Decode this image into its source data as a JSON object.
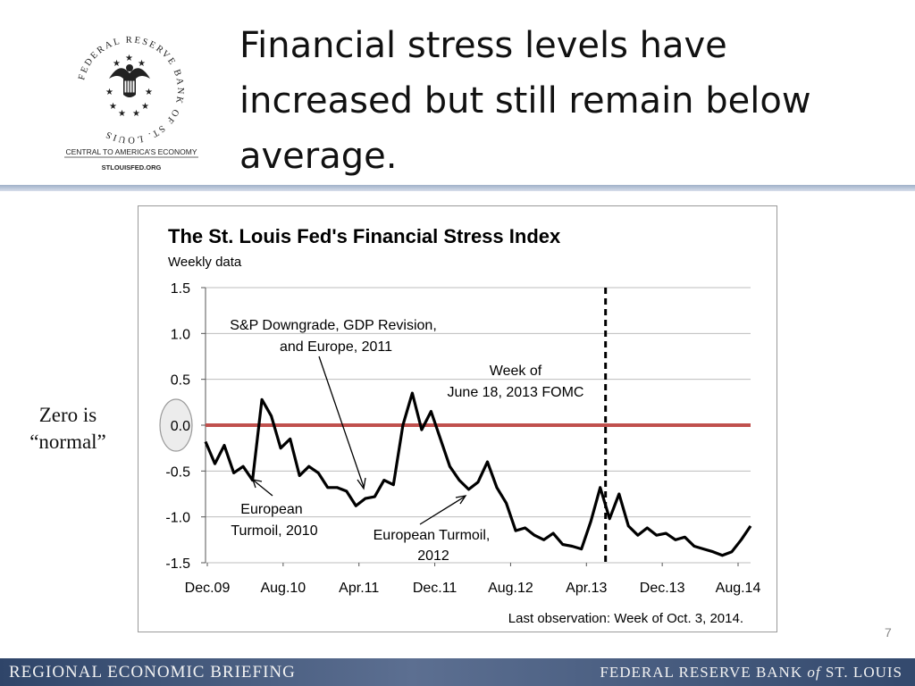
{
  "header": {
    "title_lines": [
      "Financial stress levels have",
      "increased but still remain below",
      "average."
    ]
  },
  "logo": {
    "ring_text": "FEDERAL RESERVE BANK OF ST. LOUIS",
    "tagline": "CENTRAL TO AMERICA’S ECONOMY",
    "url": "STLOUISFED.ORG"
  },
  "side_note": [
    "Zero is",
    "“normal”"
  ],
  "slide_number": "7",
  "footer": {
    "left": "REGIONAL ECONOMIC BRIEFING",
    "right_part1": "FEDERAL RESERVE BANK ",
    "right_of": "of",
    "right_part2": " ST. LOUIS"
  },
  "colors": {
    "zero_line": "#c0504d",
    "series": "#000000",
    "footer_bg": "#3d5278"
  },
  "chart_data": {
    "type": "line",
    "title": "The St. Louis Fed's Financial Stress Index",
    "subtitle": "Weekly data",
    "yticks": [
      "1.5",
      "1.0",
      "0.5",
      "0.0",
      "-0.5",
      "-1.0",
      "-1.5"
    ],
    "xticks": [
      "Dec.09",
      "Aug.10",
      "Apr.11",
      "Dec.11",
      "Aug.12",
      "Apr.13",
      "Dec.13",
      "Aug.14"
    ],
    "ylim": [
      -1.5,
      1.5
    ],
    "x_range": [
      "2009-12",
      "2014-10"
    ],
    "grid": true,
    "reference_line": {
      "y": 0.0
    },
    "event_line": {
      "x": "2013-06-18",
      "label_lines": [
        "Week of",
        "June 18, 2013 FOMC"
      ]
    },
    "annotations": [
      {
        "lines": [
          "S&P Downgrade, GDP Revision,",
          "and Europe, 2011"
        ],
        "points_to": "2011-03"
      },
      {
        "lines": [
          "European",
          "Turmoil, 2010"
        ],
        "points_to": "2010-06"
      },
      {
        "lines": [
          "European Turmoil,",
          "2012"
        ],
        "points_to": "2012-06"
      }
    ],
    "note": "Last observation: Week of Oct. 3, 2014.",
    "series": [
      {
        "points": [
          [
            "2009-12",
            -0.18
          ],
          [
            "2010-01",
            -0.42
          ],
          [
            "2010-02",
            -0.22
          ],
          [
            "2010-03",
            -0.52
          ],
          [
            "2010-04",
            -0.45
          ],
          [
            "2010-05",
            -0.6
          ],
          [
            "2010-06",
            0.28
          ],
          [
            "2010-07",
            0.1
          ],
          [
            "2010-08",
            -0.25
          ],
          [
            "2010-09",
            -0.15
          ],
          [
            "2010-10",
            -0.55
          ],
          [
            "2010-11",
            -0.45
          ],
          [
            "2010-12",
            -0.52
          ],
          [
            "2011-01",
            -0.68
          ],
          [
            "2011-02",
            -0.68
          ],
          [
            "2011-03",
            -0.72
          ],
          [
            "2011-04",
            -0.88
          ],
          [
            "2011-05",
            -0.8
          ],
          [
            "2011-06",
            -0.78
          ],
          [
            "2011-07",
            -0.6
          ],
          [
            "2011-08",
            -0.65
          ],
          [
            "2011-09",
            0.0
          ],
          [
            "2011-10",
            0.35
          ],
          [
            "2011-11",
            -0.05
          ],
          [
            "2011-12",
            0.15
          ],
          [
            "2012-01",
            -0.15
          ],
          [
            "2012-02",
            -0.45
          ],
          [
            "2012-03",
            -0.6
          ],
          [
            "2012-04",
            -0.7
          ],
          [
            "2012-05",
            -0.62
          ],
          [
            "2012-06",
            -0.4
          ],
          [
            "2012-07",
            -0.68
          ],
          [
            "2012-08",
            -0.85
          ],
          [
            "2012-09",
            -1.15
          ],
          [
            "2012-10",
            -1.12
          ],
          [
            "2012-11",
            -1.2
          ],
          [
            "2012-12",
            -1.25
          ],
          [
            "2013-01",
            -1.18
          ],
          [
            "2013-02",
            -1.3
          ],
          [
            "2013-03",
            -1.32
          ],
          [
            "2013-04",
            -1.35
          ],
          [
            "2013-05",
            -1.05
          ],
          [
            "2013-06",
            -0.68
          ],
          [
            "2013-07",
            -1.02
          ],
          [
            "2013-08",
            -0.75
          ],
          [
            "2013-09",
            -1.1
          ],
          [
            "2013-10",
            -1.2
          ],
          [
            "2013-11",
            -1.12
          ],
          [
            "2013-12",
            -1.2
          ],
          [
            "2014-01",
            -1.18
          ],
          [
            "2014-02",
            -1.25
          ],
          [
            "2014-03",
            -1.22
          ],
          [
            "2014-04",
            -1.32
          ],
          [
            "2014-05",
            -1.35
          ],
          [
            "2014-06",
            -1.38
          ],
          [
            "2014-07",
            -1.42
          ],
          [
            "2014-08",
            -1.38
          ],
          [
            "2014-09",
            -1.25
          ],
          [
            "2014-10",
            -1.1
          ]
        ]
      }
    ]
  }
}
